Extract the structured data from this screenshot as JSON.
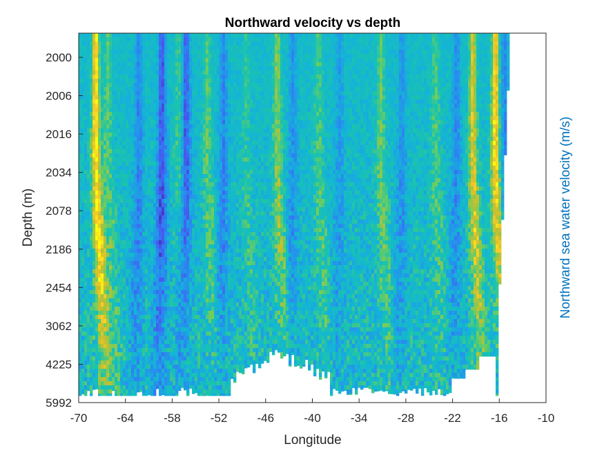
{
  "chart_data": {
    "type": "heatmap",
    "title": "Northward velocity vs depth",
    "xlabel": "Longitude",
    "ylabel": "Depth (m)",
    "colorbar_label": "Northward sea water velocity (m/s)",
    "xlim": [
      -70,
      -10
    ],
    "x_ticks": [
      -70,
      -64,
      -58,
      -52,
      -46,
      -40,
      -34,
      -28,
      -22,
      -16,
      -10
    ],
    "x_tick_labels": [
      "-70",
      "-64",
      "-58",
      "-52",
      "-46",
      "-40",
      "-34",
      "-28",
      "-22",
      "-16",
      "-10"
    ],
    "y_tick_labels": [
      "2000",
      "2006",
      "2016",
      "2034",
      "2078",
      "2186",
      "2454",
      "3062",
      "4225",
      "5992"
    ],
    "y_axis_direction": "depth increases downward",
    "colormap": "parula",
    "data_east_limit": -14.7,
    "grid": false,
    "colors": {
      "low": "#3e26a8",
      "mid": "#13beb8",
      "high": "#f9fb0e",
      "colorbar_label": "#0072bd",
      "axis": "#262626"
    },
    "streaks": [
      {
        "lon": -67.8,
        "strength": 1.0
      },
      {
        "lon": -66.3,
        "strength": 0.35
      },
      {
        "lon": -62.3,
        "strength": -0.45
      },
      {
        "lon": -59.3,
        "strength": -0.75
      },
      {
        "lon": -57.2,
        "strength": 0.25
      },
      {
        "lon": -56.2,
        "strength": -0.7
      },
      {
        "lon": -53.5,
        "strength": 0.35
      },
      {
        "lon": -51.4,
        "strength": -0.45
      },
      {
        "lon": -48.5,
        "strength": 0.2
      },
      {
        "lon": -44.5,
        "strength": 0.5
      },
      {
        "lon": -42.5,
        "strength": -0.35
      },
      {
        "lon": -39.2,
        "strength": 0.3
      },
      {
        "lon": -36.5,
        "strength": -0.3
      },
      {
        "lon": -31.2,
        "strength": 0.4
      },
      {
        "lon": -28.5,
        "strength": -0.35
      },
      {
        "lon": -24.2,
        "strength": 0.3
      },
      {
        "lon": -21.5,
        "strength": -0.4
      },
      {
        "lon": -19.4,
        "strength": 0.75
      },
      {
        "lon": -16.5,
        "strength": 0.95
      },
      {
        "lon": -15.3,
        "strength": -0.4
      }
    ]
  }
}
